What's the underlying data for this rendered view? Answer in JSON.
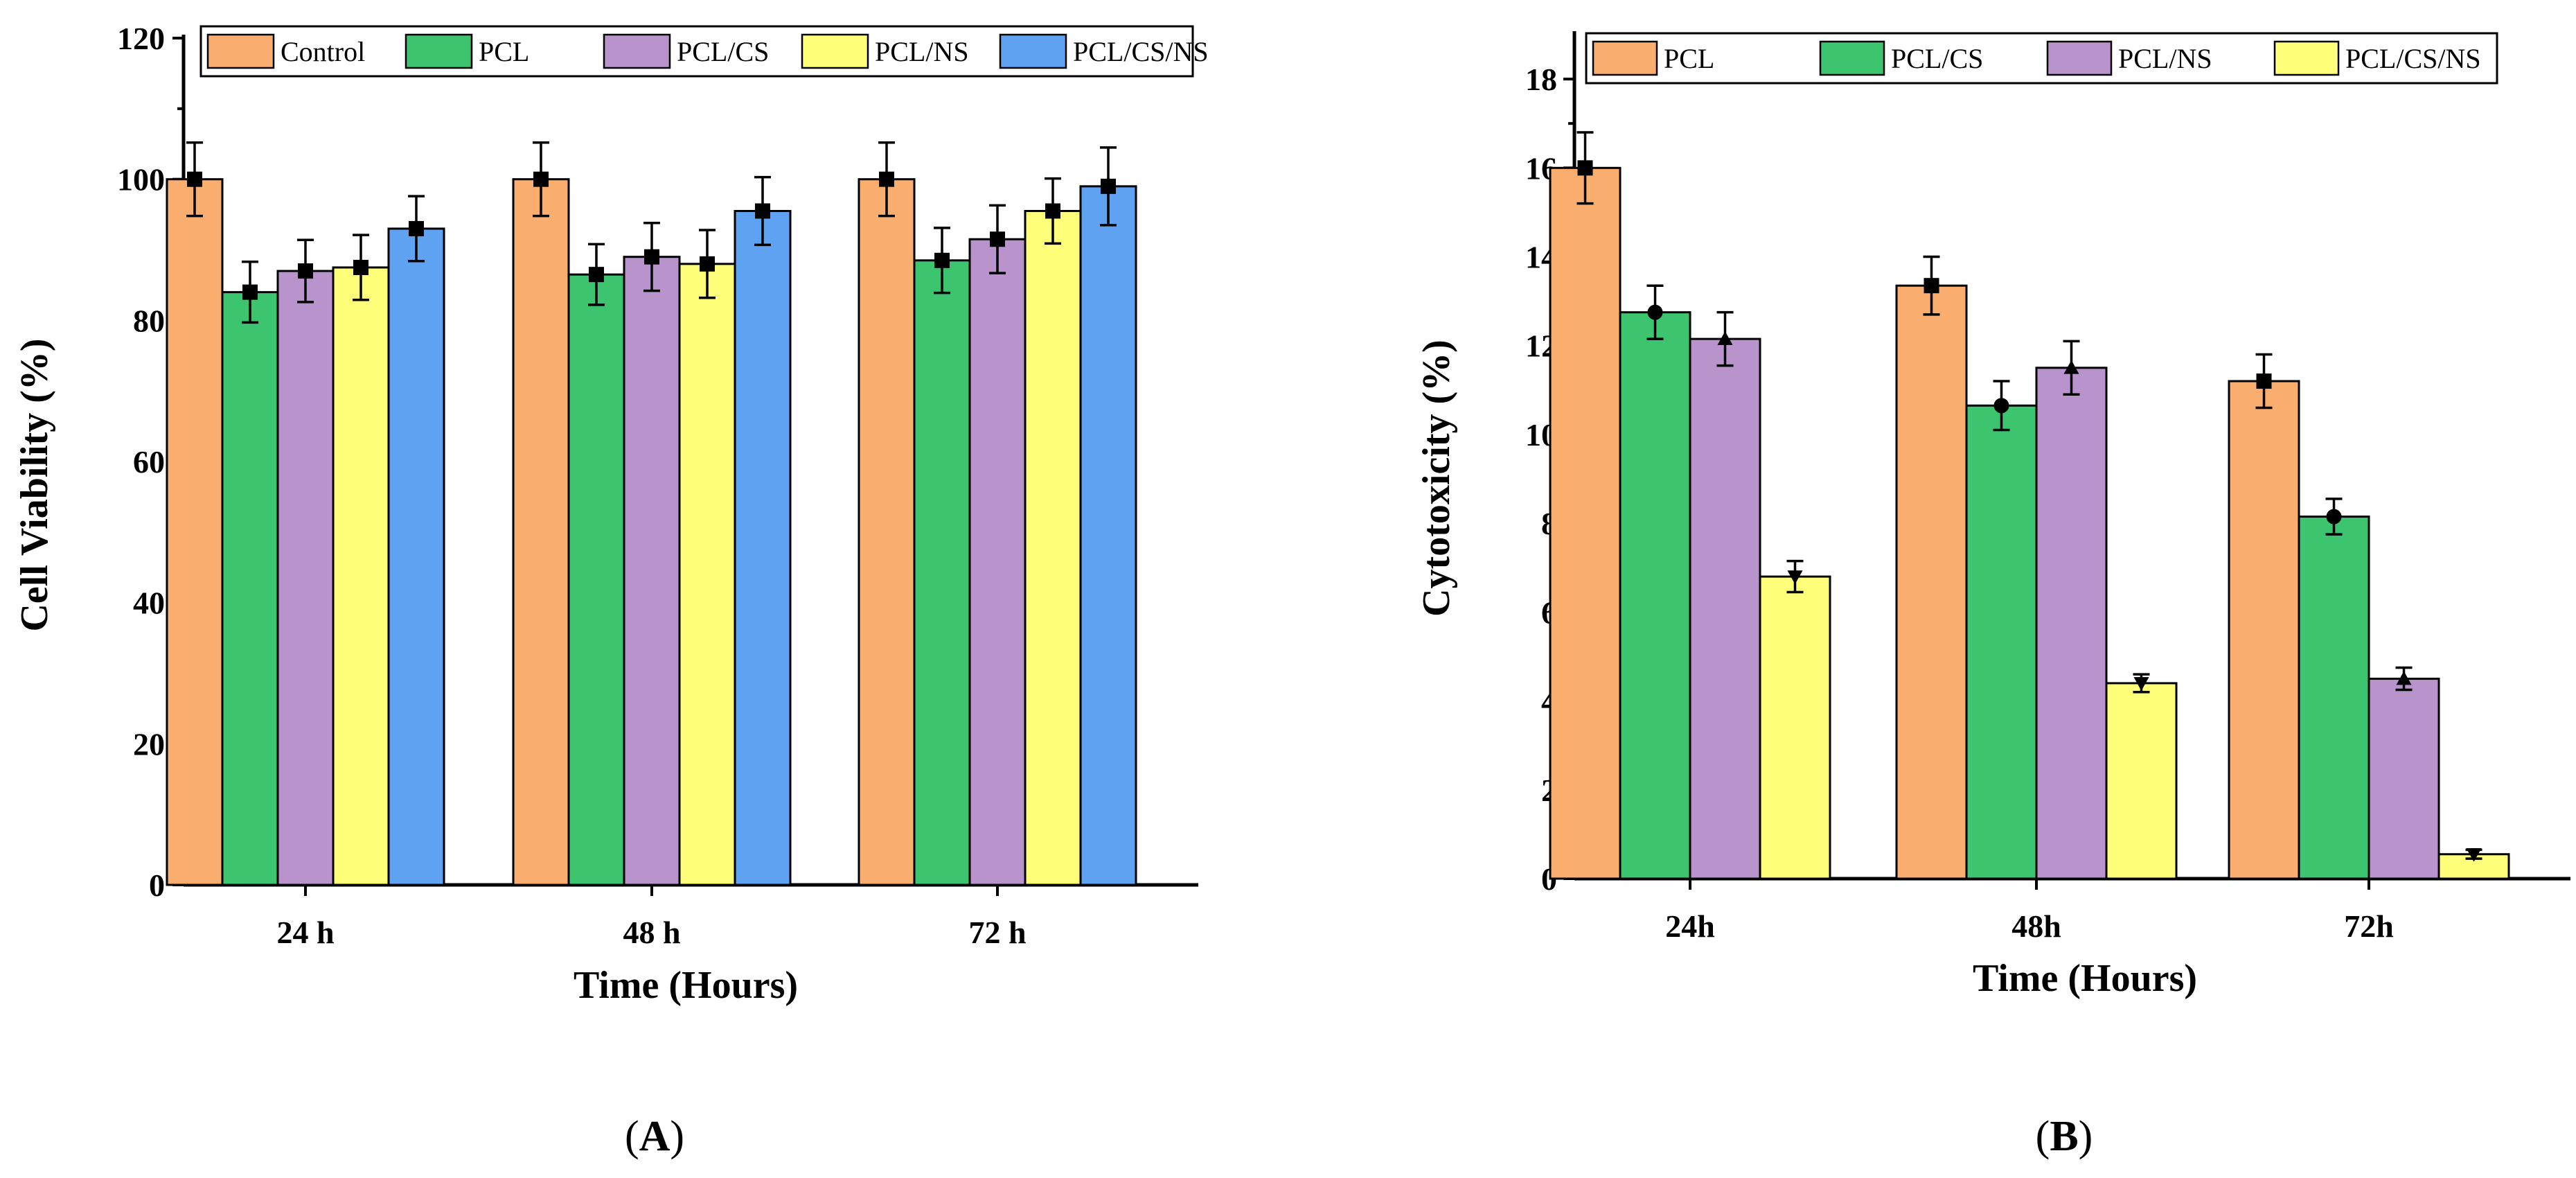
{
  "chart_data": [
    {
      "type": "bar",
      "panel": "(A)",
      "categories": [
        "24 h",
        "48 h",
        "72 h"
      ],
      "xlabel": "Time (Hours)",
      "ylabel": "Cell Viability (%)",
      "ylim": [
        0,
        120
      ],
      "yticks": [
        0,
        20,
        40,
        60,
        80,
        100,
        120
      ],
      "legend_placement": "top",
      "series": [
        {
          "name": "Control",
          "color": "#F9AD6F",
          "values": [
            100,
            100,
            100
          ],
          "errors": [
            5.2,
            5.2,
            5.2
          ],
          "marker": "square"
        },
        {
          "name": "PCL",
          "color": "#3DC46E",
          "values": [
            84,
            86.5,
            88.5
          ],
          "errors": [
            4.3,
            4.3,
            4.6
          ],
          "marker": "square"
        },
        {
          "name": "PCL/CS",
          "color": "#B893CC",
          "values": [
            87,
            89,
            91.5
          ],
          "errors": [
            4.4,
            4.8,
            4.8
          ],
          "marker": "square"
        },
        {
          "name": "PCL/NS",
          "color": "#FFFF7A",
          "values": [
            87.5,
            88,
            95.5
          ],
          "errors": [
            4.6,
            4.8,
            4.6
          ],
          "marker": "square"
        },
        {
          "name": "PCL/CS/NS",
          "color": "#5EA2F1",
          "values": [
            93,
            95.5,
            99
          ],
          "errors": [
            4.6,
            4.8,
            5.5
          ],
          "marker": "square"
        }
      ]
    },
    {
      "type": "bar",
      "panel": "(B)",
      "categories": [
        "24h",
        "48h",
        "72h"
      ],
      "xlabel": "Time (Hours)",
      "ylabel": "Cytotoxicity (%)",
      "ylim": [
        0,
        19
      ],
      "yticks": [
        0,
        2,
        4,
        6,
        8,
        10,
        12,
        14,
        16,
        18
      ],
      "legend_placement": "top",
      "series": [
        {
          "name": "PCL",
          "color": "#F9AD6F",
          "values": [
            16,
            13.35,
            11.2
          ],
          "errors": [
            0.8,
            0.65,
            0.6
          ],
          "marker": "square"
        },
        {
          "name": "PCL/CS",
          "color": "#3DC46E",
          "values": [
            12.75,
            10.65,
            8.15
          ],
          "errors": [
            0.6,
            0.55,
            0.4
          ],
          "marker": "circle"
        },
        {
          "name": "PCL/NS",
          "color": "#B893CC",
          "values": [
            12.15,
            11.5,
            4.5
          ],
          "errors": [
            0.6,
            0.6,
            0.25
          ],
          "marker": "triangle-up"
        },
        {
          "name": "PCL/CS/NS",
          "color": "#FFFF7A",
          "values": [
            6.8,
            4.4,
            0.55
          ],
          "errors": [
            0.35,
            0.2,
            0.1
          ],
          "marker": "triangle-down"
        }
      ]
    }
  ]
}
